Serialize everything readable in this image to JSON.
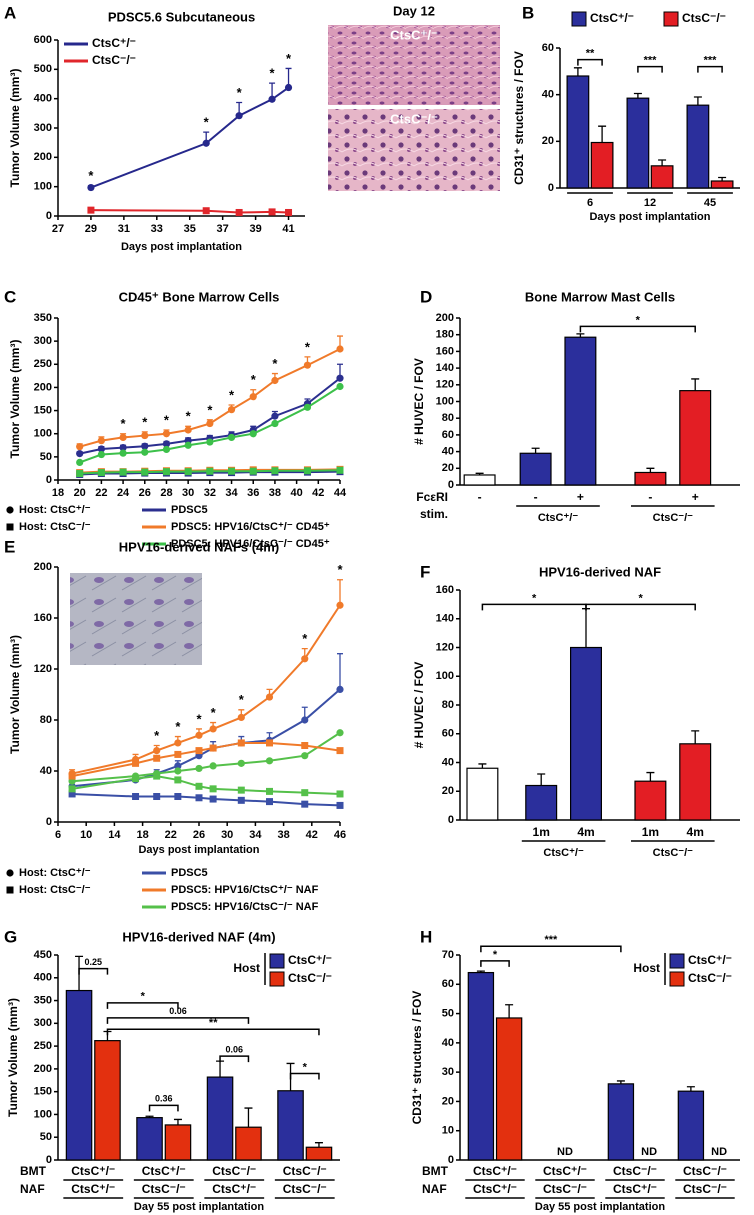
{
  "chart_data": [
    {
      "panel": "A",
      "type": "line",
      "title": "PDSC5.6 Subcutaneous",
      "xlabel": "Days post implantation",
      "ylabel": "Tumor Volume (mm³)",
      "x": [
        29,
        36,
        38,
        40,
        41
      ],
      "xlim": [
        27,
        42
      ],
      "xticks": [
        27,
        29,
        31,
        33,
        35,
        37,
        39,
        41
      ],
      "ylim": [
        0,
        600
      ],
      "yticks": [
        0,
        100,
        200,
        300,
        400,
        500,
        600
      ],
      "series": [
        {
          "name": "CtsC⁺/⁻",
          "color": "#26288c",
          "marker": "circle",
          "values": [
            97,
            248,
            342,
            398,
            438
          ],
          "errors": [
            6,
            38,
            45,
            55,
            65
          ]
        },
        {
          "name": "CtsC⁻/⁻",
          "color": "#e0262b",
          "marker": "square",
          "values": [
            20,
            18,
            12,
            14,
            12
          ],
          "errors": [
            6,
            8,
            5,
            8,
            5
          ]
        }
      ],
      "significance": [
        "*",
        "*",
        "*",
        "*",
        "*"
      ],
      "images": {
        "title": "Day 12",
        "labels": [
          "CtsC⁺/⁻",
          "CtsC⁻/⁻"
        ]
      }
    },
    {
      "panel": "B",
      "type": "bar",
      "xlabel": "Days post implantation",
      "ylabel": "CD31⁺ structures / FOV",
      "categories": [
        "6",
        "12",
        "45"
      ],
      "ylim": [
        0,
        60
      ],
      "yticks": [
        0,
        20,
        40,
        60
      ],
      "series": [
        {
          "name": "CtsC⁺/⁻",
          "color": "#2b2f9c",
          "values": [
            48,
            38.5,
            35.5
          ],
          "errors": [
            3.5,
            2,
            3.5
          ]
        },
        {
          "name": "CtsC⁻/⁻",
          "color": "#e31e24",
          "values": [
            19.5,
            9.5,
            3
          ],
          "errors": [
            7,
            2.5,
            1.5
          ]
        }
      ],
      "brackets": [
        "**",
        "***",
        "***"
      ]
    },
    {
      "panel": "C",
      "type": "line",
      "title": "CD45⁺ Bone Marrow Cells",
      "ylabel": "Tumor Volume (mm³)",
      "x": [
        20,
        22,
        24,
        26,
        28,
        30,
        32,
        34,
        36,
        38,
        41,
        44
      ],
      "xlim": [
        18,
        44
      ],
      "xticks": [
        18,
        20,
        22,
        24,
        26,
        28,
        30,
        32,
        34,
        36,
        38,
        40,
        42,
        44
      ],
      "ylim": [
        0,
        350
      ],
      "yticks": [
        0,
        50,
        100,
        150,
        200,
        250,
        300,
        350
      ],
      "series": [
        {
          "color": "#2b2f8f",
          "marker": "circle",
          "values": [
            57,
            67,
            70,
            73,
            78,
            85,
            90,
            97,
            108,
            138,
            165,
            220
          ],
          "errors": [
            4,
            5,
            5,
            5,
            5,
            6,
            6,
            7,
            8,
            10,
            10,
            30
          ]
        },
        {
          "color": "#f07a2a",
          "marker": "circle",
          "values": [
            72,
            85,
            92,
            96,
            100,
            108,
            122,
            152,
            180,
            215,
            248,
            283
          ],
          "errors": [
            6,
            8,
            8,
            8,
            8,
            8,
            8,
            10,
            15,
            15,
            18,
            28
          ]
        },
        {
          "color": "#3cc04a",
          "marker": "circle",
          "values": [
            38,
            55,
            58,
            60,
            66,
            75,
            82,
            92,
            100,
            122,
            157,
            202
          ]
        },
        {
          "color": "#2b2f8f",
          "marker": "square",
          "values": [
            12,
            14,
            14,
            15,
            15,
            15,
            16,
            16,
            17,
            17,
            17,
            18
          ]
        },
        {
          "color": "#f07a2a",
          "marker": "square",
          "values": [
            16,
            18,
            18,
            19,
            20,
            20,
            21,
            21,
            22,
            22,
            22,
            23
          ]
        },
        {
          "color": "#3cc04a",
          "marker": "square",
          "values": [
            14,
            16,
            17,
            17,
            18,
            18,
            19,
            19,
            19,
            20,
            20,
            21
          ]
        }
      ],
      "significance": [
        null,
        null,
        "*",
        "*",
        "*",
        "*",
        "*",
        "*",
        "*",
        "*",
        "*",
        null
      ],
      "legend": {
        "hosts": [
          {
            "name": "Host: CtsC⁺/⁻",
            "marker": "circle"
          },
          {
            "name": "Host: CtsC⁻/⁻",
            "marker": "square"
          }
        ],
        "lines": [
          {
            "name": "PDSC5",
            "color": "#2b2f8f"
          },
          {
            "name": "PDSC5: HPV16/CtsC⁺/⁻ CD45⁺",
            "color": "#f07a2a"
          },
          {
            "name": "PDSC5: HPV16/CtsC⁻/⁻ CD45⁺",
            "color": "#3cc04a"
          }
        ]
      }
    },
    {
      "panel": "D",
      "type": "bar",
      "title": "Bone Marrow Mast Cells",
      "ylabel": "# HUVEC / FOV",
      "ylim": [
        0,
        200
      ],
      "yticks": [
        0,
        20,
        40,
        60,
        80,
        100,
        120,
        140,
        160,
        180,
        200
      ],
      "values": [
        12,
        38,
        177,
        15,
        113
      ],
      "errors": [
        2,
        6,
        4,
        5,
        14
      ],
      "colors": [
        "#ffffff",
        "#2b2f9c",
        "#2b2f9c",
        "#e31e24",
        "#e31e24"
      ],
      "sublabels": [
        "-",
        "-",
        "+",
        "-",
        "+"
      ],
      "row_label": [
        "FcεRI",
        "stim."
      ],
      "groups": [
        "CtsC⁺/⁻",
        "CtsC⁻/⁻"
      ],
      "brackets": [
        "*"
      ]
    },
    {
      "panel": "E",
      "type": "line",
      "title": "HPV16-derived NAFs (4m)",
      "xlabel": "Days post implantation",
      "ylabel": "Tumor Volume (mm³)",
      "x": [
        8,
        17,
        20,
        23,
        26,
        28,
        32,
        36,
        41,
        46
      ],
      "xlim": [
        6,
        46
      ],
      "xticks": [
        6,
        10,
        14,
        18,
        22,
        26,
        30,
        34,
        38,
        42,
        46
      ],
      "ylim": [
        0,
        200
      ],
      "yticks": [
        0,
        40,
        80,
        120,
        160,
        200
      ],
      "series": [
        {
          "color": "#3a4fa6",
          "marker": "circle",
          "values": [
            28,
            33,
            38,
            44,
            52,
            58,
            62,
            64,
            80,
            104
          ],
          "errors": [
            3,
            3,
            3,
            4,
            4,
            5,
            5,
            6,
            10,
            28
          ]
        },
        {
          "color": "#f07a2a",
          "marker": "circle",
          "values": [
            38,
            49,
            56,
            62,
            68,
            73,
            82,
            98,
            128,
            170
          ],
          "errors": [
            3,
            4,
            4,
            5,
            5,
            5,
            6,
            6,
            8,
            20
          ]
        },
        {
          "color": "#55c04a",
          "marker": "circle",
          "values": [
            32,
            36,
            38,
            40,
            42,
            44,
            46,
            48,
            52,
            70
          ]
        },
        {
          "color": "#3a4fa6",
          "marker": "square",
          "values": [
            22,
            20,
            20,
            20,
            19,
            18,
            17,
            16,
            14,
            13
          ]
        },
        {
          "color": "#f07a2a",
          "marker": "square",
          "values": [
            36,
            46,
            50,
            53,
            56,
            58,
            62,
            62,
            60,
            56
          ]
        },
        {
          "color": "#55c04a",
          "marker": "square",
          "values": [
            26,
            34,
            36,
            33,
            28,
            26,
            25,
            24,
            23,
            22
          ]
        }
      ],
      "significance": [
        null,
        null,
        "*",
        "*",
        "*",
        "*",
        "*",
        null,
        "*",
        "*"
      ],
      "legend": {
        "hosts": [
          {
            "name": "Host: CtsC⁺/⁻",
            "marker": "circle"
          },
          {
            "name": "Host: CtsC⁻/⁻",
            "marker": "square"
          }
        ],
        "lines": [
          {
            "name": "PDSC5",
            "color": "#3a4fa6"
          },
          {
            "name": "PDSC5: HPV16/CtsC⁺/⁻ NAF",
            "color": "#f07a2a"
          },
          {
            "name": "PDSC5: HPV16/CtsC⁻/⁻ NAF",
            "color": "#55c04a"
          }
        ]
      }
    },
    {
      "panel": "F",
      "type": "bar",
      "title": "HPV16-derived NAF",
      "ylabel": "# HUVEC / FOV",
      "ylim": [
        0,
        160
      ],
      "yticks": [
        0,
        20,
        40,
        60,
        80,
        100,
        120,
        140,
        160
      ],
      "values": [
        36,
        24,
        120,
        27,
        53
      ],
      "errors": [
        3,
        8,
        27,
        6,
        9
      ],
      "colors": [
        "#ffffff",
        "#2b2f9c",
        "#2b2f9c",
        "#e31e24",
        "#e31e24"
      ],
      "sublabels": [
        null,
        "1m",
        "4m",
        "1m",
        "4m"
      ],
      "groups": [
        "CtsC⁺/⁻",
        "CtsC⁻/⁻"
      ],
      "brackets": [
        "*",
        "*"
      ]
    },
    {
      "panel": "G",
      "type": "bar",
      "title": "HPV16-derived NAF (4m)",
      "xlabel": "Day 55 post implantation",
      "ylabel": "Tumor Volume (mm³)",
      "ylim": [
        0,
        450
      ],
      "yticks": [
        0,
        50,
        100,
        150,
        200,
        250,
        300,
        350,
        400,
        450
      ],
      "rows": [
        {
          "name": "BMT",
          "values": [
            "CtsC⁺/⁻",
            "CtsC⁺/⁻",
            "CtsC⁻/⁻",
            "CtsC⁻/⁻"
          ]
        },
        {
          "name": "NAF",
          "values": [
            "CtsC⁺/⁻",
            "CtsC⁻/⁻",
            "CtsC⁺/⁻",
            "CtsC⁻/⁻"
          ]
        }
      ],
      "legend_title": "Host",
      "series": [
        {
          "name": "CtsC⁺/⁻",
          "color": "#2b2f9c",
          "values": [
            372,
            93,
            182,
            152
          ],
          "errors": [
            75,
            3,
            35,
            60
          ]
        },
        {
          "name": "CtsC⁻/⁻",
          "color": "#e3300f",
          "values": [
            262,
            77,
            72,
            28
          ],
          "errors": [
            20,
            12,
            42,
            10
          ]
        }
      ],
      "brackets": [
        "0.25",
        "*",
        "0.06",
        "**",
        "0.36",
        "0.06",
        "*"
      ]
    },
    {
      "panel": "H",
      "type": "bar",
      "xlabel": "Day 55 post implantation",
      "ylabel": "CD31⁺ structures / FOV",
      "ylim": [
        0,
        70
      ],
      "yticks": [
        0,
        10,
        20,
        30,
        40,
        50,
        60,
        70
      ],
      "rows": [
        {
          "name": "BMT",
          "values": [
            "CtsC⁺/⁻",
            "CtsC⁺/⁻",
            "CtsC⁻/⁻",
            "CtsC⁻/⁻"
          ]
        },
        {
          "name": "NAF",
          "values": [
            "CtsC⁺/⁻",
            "CtsC⁻/⁻",
            "CtsC⁺/⁻",
            "CtsC⁻/⁻"
          ]
        }
      ],
      "legend_title": "Host",
      "not_detected": "ND",
      "series": [
        {
          "name": "CtsC⁺/⁻",
          "color": "#2b2f9c",
          "values": [
            64,
            null,
            26,
            23.5
          ],
          "errors": [
            0.5,
            null,
            1,
            1.5
          ]
        },
        {
          "name": "CtsC⁻/⁻",
          "color": "#e3300f",
          "values": [
            48.5,
            null,
            null,
            null
          ],
          "errors": [
            4.5,
            null,
            null,
            null
          ]
        }
      ],
      "brackets": [
        "*",
        "***"
      ]
    }
  ]
}
